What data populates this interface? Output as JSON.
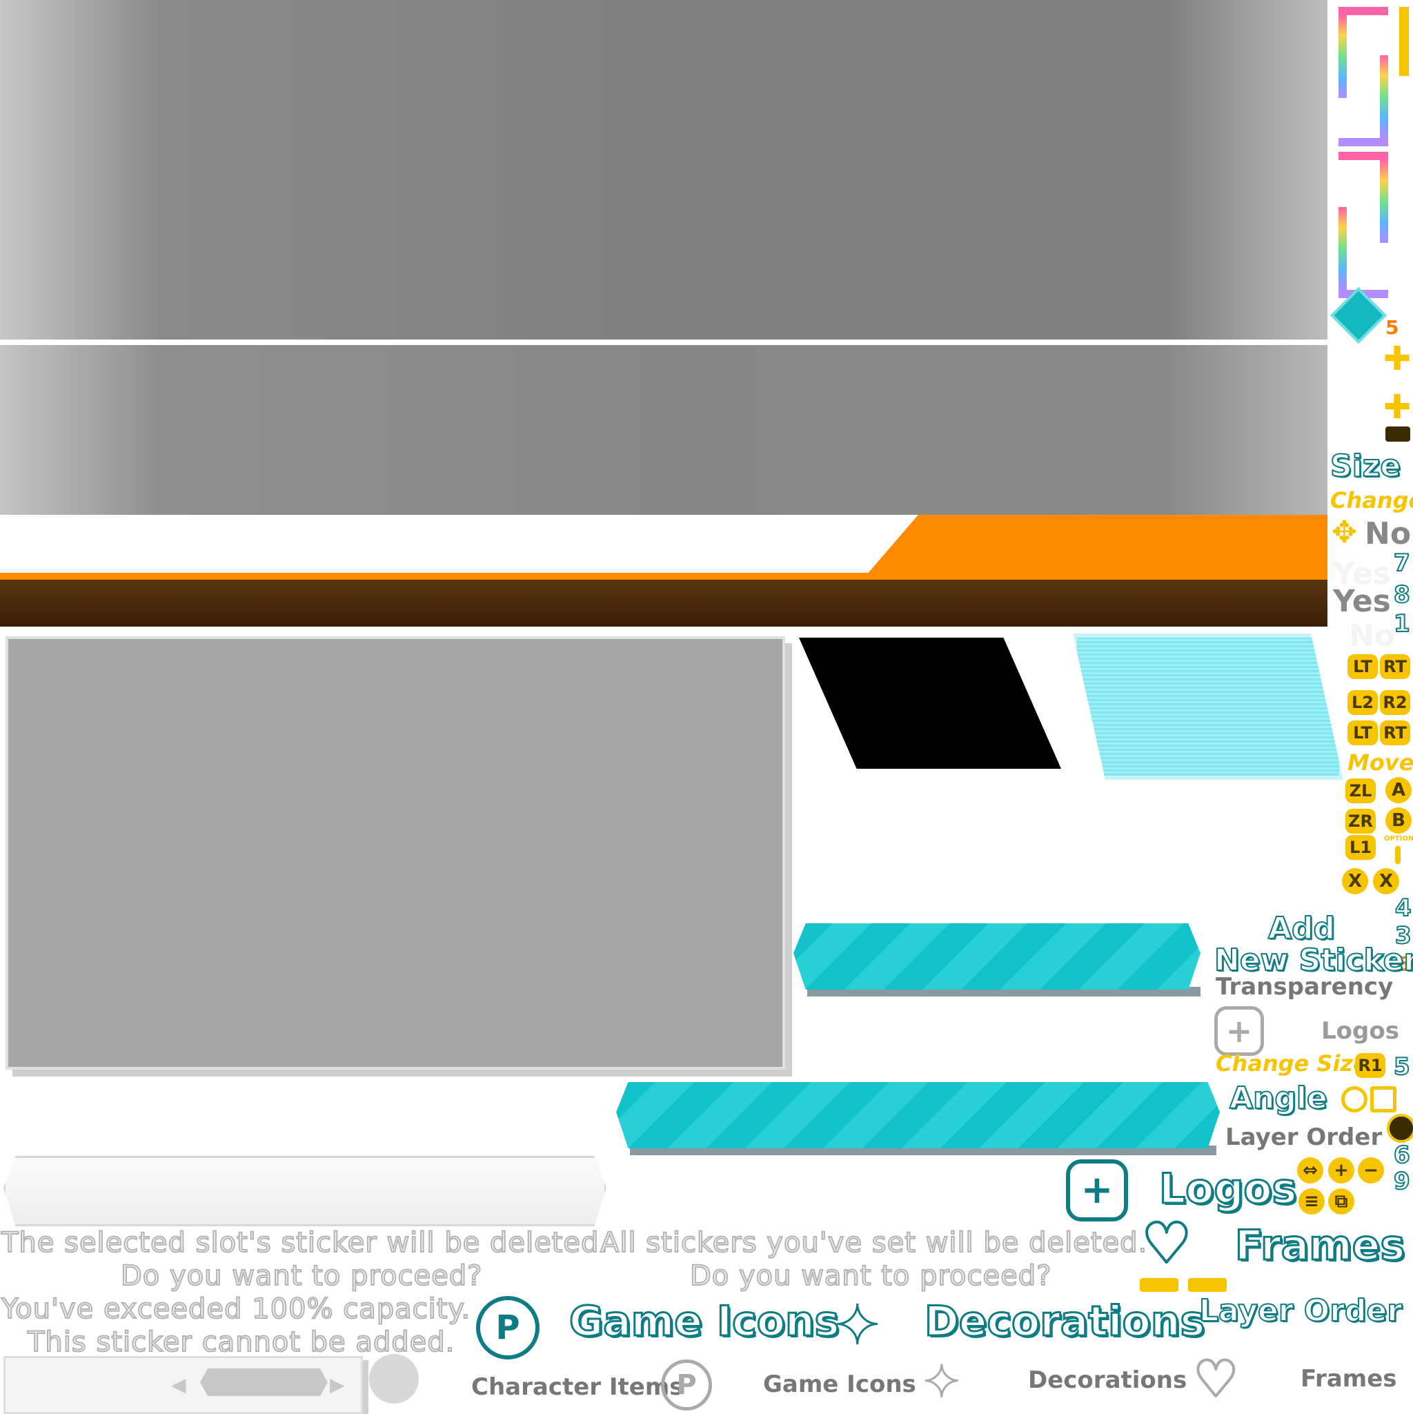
{
  "dialog": {
    "delete_slot": "The selected slot's sticker will be deleted.",
    "delete_all": "All stickers you've set will be deleted.",
    "proceed_1": "Do you want to proceed?",
    "proceed_2": "Do you want to proceed?",
    "capacity": "You've exceeded 100% capacity.",
    "cannot_add": "This sticker cannot be added."
  },
  "categories_active": {
    "game_icons": "Game Icons",
    "decorations": "Decorations",
    "logos": "Logos",
    "frames": "Frames",
    "layer_order": "Layer Order"
  },
  "categories_inactive": {
    "character_items": "Character Items",
    "game_icons": "Game Icons",
    "decorations": "Decorations",
    "frames": "Frames",
    "logos": "Logos"
  },
  "labels": {
    "size": "Size",
    "change": "Change",
    "no_1": "No",
    "yes_1": "Yes",
    "yes_2": "Yes",
    "no_2": "No",
    "move": "Move",
    "add": "Add",
    "new_sticker": "New Sticker",
    "transparency": "Transparency",
    "change_size": "Change Size",
    "angle": "Angle",
    "layer_order": "Layer Order",
    "options": "OPTIONS"
  },
  "buttons": {
    "lt": "LT",
    "rt": "RT",
    "l2": "L2",
    "r2": "R2",
    "lt2": "LT",
    "rt2": "RT",
    "zl": "ZL",
    "a": "A",
    "zr": "ZR",
    "b": "B",
    "l1": "L1",
    "x1": "X",
    "x2": "X",
    "r1": "R1",
    "plus": "+",
    "minus": "−"
  },
  "numbers": {
    "n5a": "5",
    "n7": "7",
    "n8": "8",
    "n1": "1",
    "n4": "4",
    "n3": "3",
    "n6a": "6",
    "n5b": "5",
    "n6b": "6",
    "n9": "9"
  },
  "colors": {
    "orange": "#ff8a00",
    "teal": "#14b8bf",
    "dark_teal": "#0e7c84",
    "yellow": "#f6c400",
    "brown": "#4a2a0a"
  }
}
